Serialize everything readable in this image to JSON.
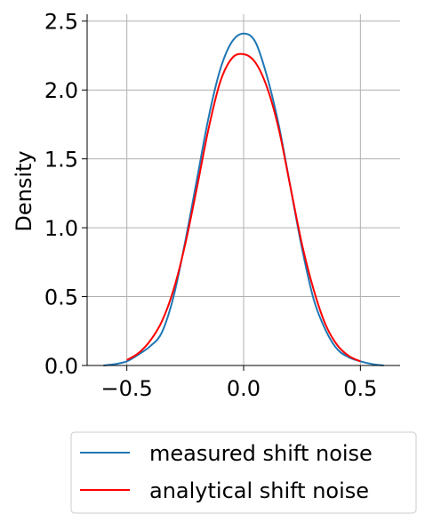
{
  "chart_data": {
    "type": "line",
    "title": "",
    "xlabel": "",
    "ylabel": "Density",
    "xlim": [
      -0.67,
      0.67
    ],
    "ylim": [
      0,
      2.55
    ],
    "xticks": [
      -0.5,
      0.0,
      0.5
    ],
    "xtick_labels": [
      "−0.5",
      "0.0",
      "0.5"
    ],
    "yticks": [
      0.0,
      0.5,
      1.0,
      1.5,
      2.0,
      2.5
    ],
    "ytick_labels": [
      "0.0",
      "0.5",
      "1.0",
      "1.5",
      "2.0",
      "2.5"
    ],
    "grid": true,
    "legend_position": "below",
    "series": [
      {
        "name": "measured shift noise",
        "color": "#1f77b4",
        "x": [
          -0.6,
          -0.55,
          -0.5,
          -0.45,
          -0.4,
          -0.35,
          -0.3,
          -0.25,
          -0.2,
          -0.15,
          -0.1,
          -0.05,
          0.0,
          0.05,
          0.1,
          0.15,
          0.2,
          0.25,
          0.3,
          0.35,
          0.4,
          0.45,
          0.5,
          0.55,
          0.6
        ],
        "y": [
          0.0,
          0.01,
          0.03,
          0.08,
          0.14,
          0.24,
          0.5,
          0.9,
          1.35,
          1.8,
          2.15,
          2.35,
          2.41,
          2.35,
          2.1,
          1.75,
          1.3,
          0.85,
          0.48,
          0.26,
          0.12,
          0.06,
          0.03,
          0.01,
          0.0
        ]
      },
      {
        "name": "analytical shift noise",
        "color": "#ff0000",
        "x": [
          -0.5,
          -0.45,
          -0.4,
          -0.35,
          -0.3,
          -0.25,
          -0.2,
          -0.15,
          -0.1,
          -0.05,
          0.0,
          0.05,
          0.1,
          0.15,
          0.2,
          0.25,
          0.3,
          0.35,
          0.4,
          0.45,
          0.5
        ],
        "y": [
          0.04,
          0.09,
          0.18,
          0.32,
          0.55,
          0.88,
          1.29,
          1.72,
          2.06,
          2.23,
          2.26,
          2.2,
          2.02,
          1.72,
          1.3,
          0.88,
          0.55,
          0.3,
          0.15,
          0.07,
          0.03
        ]
      }
    ]
  }
}
